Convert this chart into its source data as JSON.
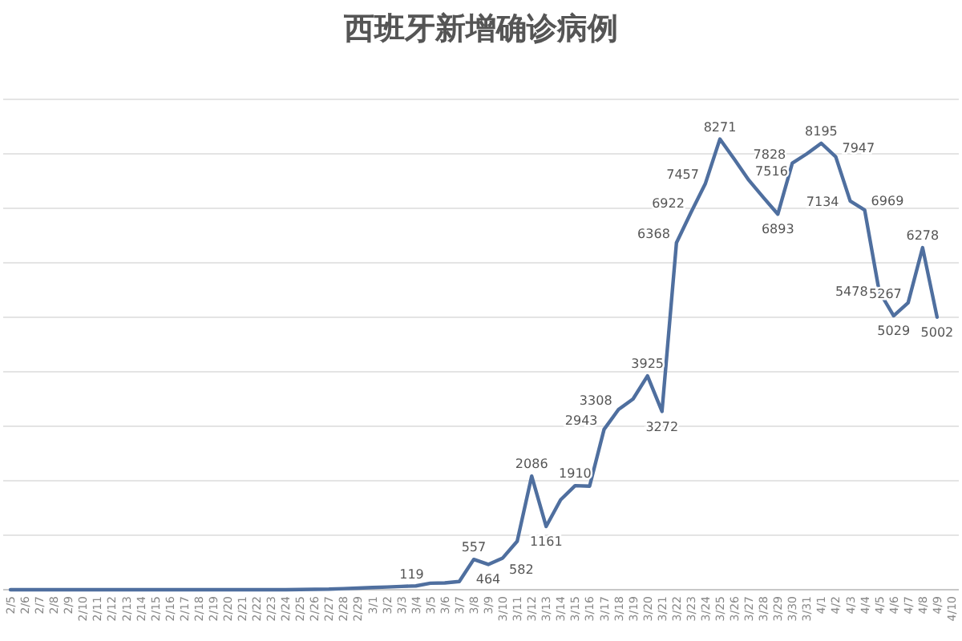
{
  "chart_data": {
    "type": "line",
    "title": "西班牙新增确诊病例",
    "categories": [
      "2/5",
      "2/6",
      "2/7",
      "2/8",
      "2/9",
      "2/10",
      "2/11",
      "2/12",
      "2/13",
      "2/14",
      "2/15",
      "2/16",
      "2/17",
      "2/18",
      "2/19",
      "2/20",
      "2/21",
      "2/22",
      "2/23",
      "2/24",
      "2/25",
      "2/26",
      "2/27",
      "2/28",
      "2/29",
      "3/1",
      "3/2",
      "3/3",
      "3/4",
      "3/5",
      "3/6",
      "3/7",
      "3/8",
      "3/9",
      "3/10",
      "3/11",
      "3/12",
      "3/13",
      "3/14",
      "3/15",
      "3/16",
      "3/17",
      "3/18",
      "3/19",
      "3/20",
      "3/21",
      "3/22",
      "3/23",
      "3/24",
      "3/25",
      "3/26",
      "3/27",
      "3/28",
      "3/29",
      "3/30",
      "3/31",
      "4/1",
      "4/2",
      "4/3",
      "4/4",
      "4/5",
      "4/6",
      "4/7",
      "4/8",
      "4/9",
      "4/10"
    ],
    "series": [
      {
        "color": "#4f6f9f",
        "values": [
          0,
          0,
          0,
          0,
          0,
          0,
          0,
          0,
          0,
          0,
          0,
          0,
          0,
          0,
          0,
          0,
          0,
          0,
          0,
          0,
          4,
          7,
          10,
          20,
          30,
          40,
          50,
          60,
          70,
          119,
          125,
          150,
          557,
          464,
          582,
          890,
          2086,
          1161,
          1650,
          1910,
          1900,
          2943,
          3308,
          3500,
          3925,
          3272,
          6368,
          6922,
          7457,
          8271,
          7900,
          7516,
          7200,
          6893,
          7828,
          8000,
          8195,
          7947,
          7134,
          6969,
          5478,
          5029,
          5267,
          6278,
          5002,
          null
        ],
        "value_labels": [
          null,
          null,
          null,
          null,
          null,
          null,
          null,
          null,
          null,
          null,
          null,
          null,
          null,
          null,
          null,
          null,
          null,
          null,
          null,
          null,
          null,
          null,
          null,
          null,
          null,
          null,
          null,
          null,
          null,
          "119",
          null,
          null,
          "557",
          "464",
          "582",
          null,
          "2086",
          "1161",
          null,
          "1910",
          null,
          "2943",
          "3308",
          null,
          "3925",
          "3272",
          "6368",
          "6922",
          "7457",
          "8271",
          null,
          "7516",
          null,
          "6893",
          "7828",
          null,
          "8195",
          "7947",
          "7134",
          "6969",
          "5478",
          "5029",
          "5267",
          "6278",
          "5002",
          null
        ]
      }
    ],
    "ylim": [
      0,
      9000
    ],
    "yticks": [
      {
        "value": 0,
        "label": null
      },
      {
        "value": 1000,
        "label": null
      },
      {
        "value": 2000,
        "label": null
      },
      {
        "value": 3000,
        "label": null
      },
      {
        "value": 4000,
        "label": null
      },
      {
        "value": 5000,
        "label": null
      },
      {
        "value": 6000,
        "label": null
      },
      {
        "value": 7000,
        "label": null
      },
      {
        "value": 8000,
        "label": null
      },
      {
        "value": 9000,
        "label": null
      }
    ],
    "tick_labels": "x",
    "grid": "y",
    "marker": "none",
    "line_style": "solid"
  }
}
